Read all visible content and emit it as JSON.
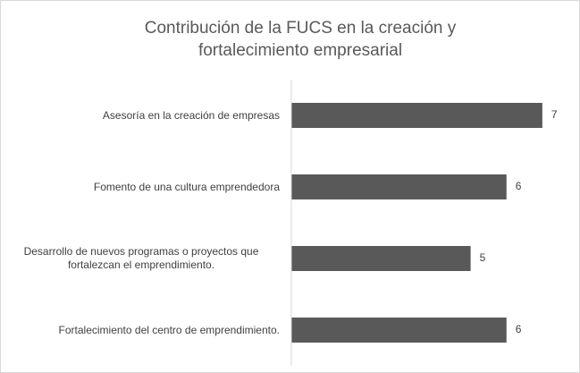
{
  "chart_data": {
    "type": "bar",
    "orientation": "horizontal",
    "title": "Contribución de la FUCS  en la creación y fortalecimiento empresarial",
    "categories": [
      "Asesoría en la creación de empresas",
      "Fomento de una cultura emprendedora",
      "Desarrollo de nuevos programas o proyectos que fortalezcan el emprendimiento.",
      "Fortalecimiento del centro de emprendimiento."
    ],
    "values": [
      7,
      6,
      5,
      6
    ],
    "color": "#595959",
    "xlim": [
      0,
      8
    ]
  }
}
